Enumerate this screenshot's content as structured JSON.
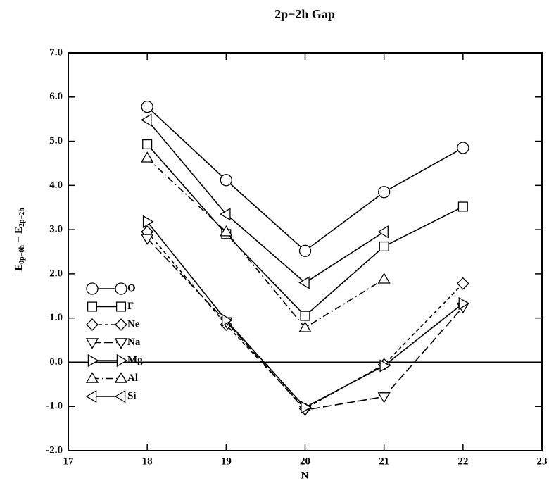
{
  "chart_data": {
    "type": "line",
    "title": "2p−2h Gap",
    "xlabel": "N",
    "ylabel": [
      "E",
      "0p−0h",
      " − E",
      "2p−2h"
    ],
    "x": [
      18,
      19,
      20,
      21,
      22
    ],
    "xlim": [
      17,
      23
    ],
    "xticks": [
      17,
      18,
      19,
      20,
      21,
      22,
      23
    ],
    "ylim": [
      -2,
      7
    ],
    "yticks": [
      {
        "value": -2,
        "label": "-2.0"
      },
      {
        "value": -1,
        "label": "-1.0"
      },
      {
        "value": 0,
        "label": "0.0"
      },
      {
        "value": 1,
        "label": "1.0"
      },
      {
        "value": 2,
        "label": "2.0"
      },
      {
        "value": 3,
        "label": "3.0"
      },
      {
        "value": 4,
        "label": "4.0"
      },
      {
        "value": 5,
        "label": "5.0"
      },
      {
        "value": 6,
        "label": "6.0"
      },
      {
        "value": 7,
        "label": "7.0"
      }
    ],
    "hline": 0,
    "legend": "lower-left",
    "series": [
      {
        "name": "O",
        "color": "#000000",
        "marker": "circle",
        "dash": "solid",
        "values": [
          5.78,
          4.12,
          2.52,
          3.85,
          4.85
        ]
      },
      {
        "name": "F",
        "color": "#000000",
        "marker": "square",
        "dash": "solid",
        "values": [
          4.93,
          2.9,
          1.05,
          2.62,
          3.52
        ]
      },
      {
        "name": "Ne",
        "color": "#000000",
        "marker": "diamond",
        "dash": "short",
        "values": [
          2.95,
          0.85,
          -1.05,
          -0.05,
          1.78
        ]
      },
      {
        "name": "Na",
        "color": "#000000",
        "marker": "triangle-down",
        "dash": "long",
        "values": [
          2.8,
          0.92,
          -1.08,
          -0.78,
          1.25
        ]
      },
      {
        "name": "Mg",
        "color": "#000000",
        "marker": "triangle-right",
        "dash": "solid",
        "values": [
          3.18,
          0.95,
          -1.02,
          -0.08,
          1.33
        ]
      },
      {
        "name": "Al",
        "color": "#000000",
        "marker": "triangle-up",
        "dash": "dashdot",
        "values": [
          4.62,
          2.95,
          0.78,
          1.88,
          null
        ]
      },
      {
        "name": "Si",
        "color": "#000000",
        "marker": "triangle-left",
        "dash": "solid",
        "values": [
          5.48,
          3.35,
          1.8,
          2.95,
          null
        ]
      }
    ]
  }
}
